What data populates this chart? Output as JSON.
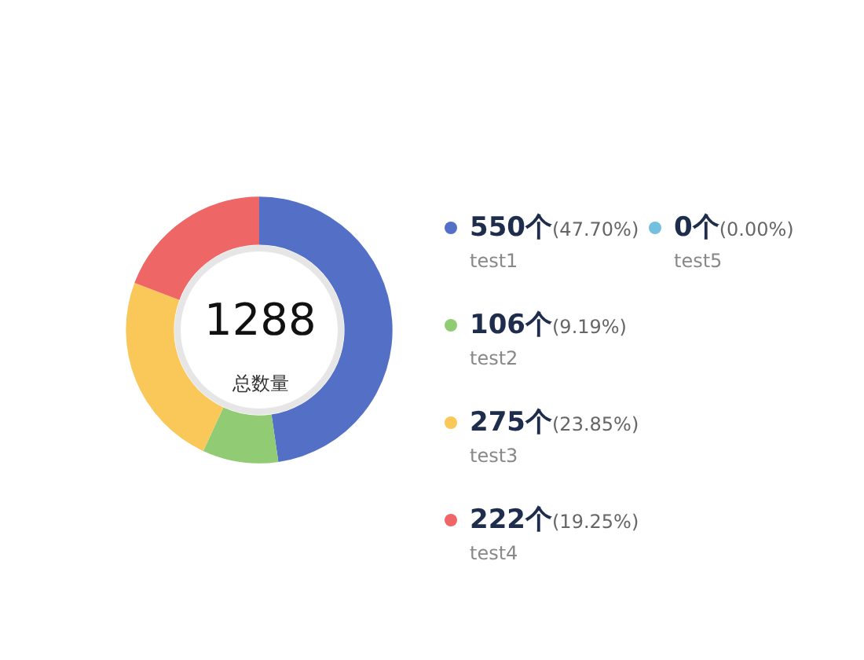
{
  "chart_data": {
    "type": "donut",
    "categories": [
      "test1",
      "test2",
      "test3",
      "test4",
      "test5"
    ],
    "values": [
      550,
      106,
      275,
      222,
      0
    ],
    "colors": [
      "#5470c6",
      "#91cc75",
      "#fac858",
      "#ee6666",
      "#73c0de"
    ],
    "value_labels": [
      "550个(47.70%)",
      "106个(9.19%)",
      "275个(23.85%)",
      "222个(19.25%)",
      "0个(0.00%)"
    ],
    "annotations": [
      "1288",
      "总数量"
    ],
    "legend": "right"
  }
}
